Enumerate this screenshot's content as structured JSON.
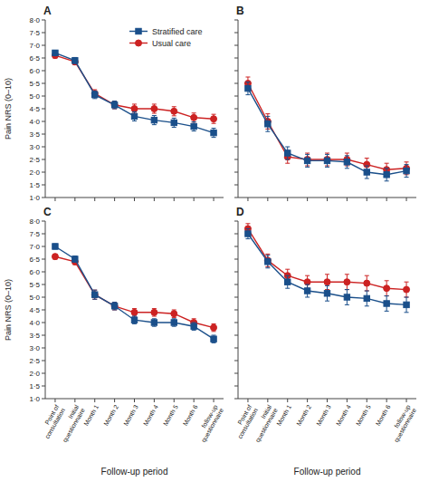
{
  "chart_data": [
    {
      "type": "line",
      "title": "A",
      "ylabel": "Pain NRS (0–10)",
      "categories": [
        null,
        null,
        null,
        null,
        null,
        null,
        null,
        null,
        null
      ],
      "series": [
        {
          "name": "Stratified care",
          "color": "#1a4f8a",
          "marker": "square",
          "values": [
            6.7,
            6.4,
            5.05,
            4.65,
            4.2,
            4.05,
            3.95,
            3.8,
            3.55
          ],
          "errors": [
            0.1,
            0.12,
            0.15,
            0.15,
            0.18,
            0.18,
            0.18,
            0.18,
            0.18
          ]
        },
        {
          "name": "Usual care",
          "color": "#cc2222",
          "marker": "circle",
          "values": [
            6.6,
            6.35,
            5.1,
            4.65,
            4.5,
            4.5,
            4.4,
            4.15,
            4.1
          ],
          "errors": [
            0.1,
            0.12,
            0.15,
            0.15,
            0.18,
            0.18,
            0.18,
            0.18,
            0.18
          ]
        }
      ],
      "ylim": [
        1.0,
        8.0
      ],
      "yticks": [
        {
          "value": 1.0,
          "label": "1·0"
        },
        {
          "value": 1.5,
          "label": "1·5"
        },
        {
          "value": 2.0,
          "label": "2·0"
        },
        {
          "value": 2.5,
          "label": "2·5"
        },
        {
          "value": 3.0,
          "label": "3·0"
        },
        {
          "value": 3.5,
          "label": "3·5"
        },
        {
          "value": 4.0,
          "label": "4·0"
        },
        {
          "value": 4.5,
          "label": "4·5"
        },
        {
          "value": 5.0,
          "label": "5·0"
        },
        {
          "value": 5.5,
          "label": "5·5"
        },
        {
          "value": 6.0,
          "label": "6·0"
        },
        {
          "value": 6.5,
          "label": "6·5"
        },
        {
          "value": 7.0,
          "label": "7·0"
        },
        {
          "value": 7.5,
          "label": "7·5"
        },
        {
          "value": 8.0,
          "label": "8·0"
        }
      ],
      "tick_labels": "y",
      "legend": "upper-right"
    },
    {
      "type": "line",
      "title": "B",
      "categories": [
        null,
        null,
        null,
        null,
        null,
        null,
        null,
        null,
        null
      ],
      "series": [
        {
          "color": "#1a4f8a",
          "marker": "square",
          "values": [
            5.3,
            3.9,
            2.75,
            2.45,
            2.45,
            2.4,
            2.0,
            1.9,
            2.05
          ],
          "errors": [
            0.25,
            0.3,
            0.25,
            0.25,
            0.25,
            0.25,
            0.25,
            0.25,
            0.25
          ]
        },
        {
          "color": "#cc2222",
          "marker": "circle",
          "values": [
            5.5,
            4.0,
            2.6,
            2.5,
            2.5,
            2.5,
            2.3,
            2.1,
            2.15
          ],
          "errors": [
            0.25,
            0.3,
            0.25,
            0.25,
            0.25,
            0.25,
            0.25,
            0.25,
            0.25
          ]
        }
      ],
      "ylim": [
        1.0,
        8.0
      ],
      "yticks": [
        1.0,
        1.5,
        2.0,
        2.5,
        3.0,
        3.5,
        4.0,
        4.5,
        5.0,
        5.5,
        6.0,
        6.5,
        7.0,
        7.5,
        8.0
      ],
      "tick_labels": false
    },
    {
      "type": "line",
      "title": "C",
      "ylabel": "Pain NRS (0–10)",
      "xlabel": "Follow-up period",
      "categories": [
        "Point of\nconsultation",
        "Initial\nquestionnaire",
        "Month 1",
        "Month 2",
        "Month 3",
        "Month 4",
        "Month 5",
        "Month 6",
        "follow-up\nquestionnaire"
      ],
      "series": [
        {
          "color": "#1a4f8a",
          "marker": "square",
          "values": [
            7.0,
            6.5,
            5.1,
            4.65,
            4.1,
            4.0,
            4.0,
            3.85,
            3.35
          ],
          "errors": [
            0.1,
            0.12,
            0.18,
            0.15,
            0.15,
            0.15,
            0.15,
            0.15,
            0.15
          ]
        },
        {
          "color": "#cc2222",
          "marker": "circle",
          "values": [
            6.6,
            6.4,
            5.1,
            4.65,
            4.4,
            4.4,
            4.35,
            4.0,
            3.8
          ],
          "errors": [
            0.1,
            0.12,
            0.18,
            0.15,
            0.15,
            0.15,
            0.15,
            0.15,
            0.15
          ]
        }
      ],
      "ylim": [
        1.0,
        8.0
      ],
      "yticks": [
        {
          "value": 1.0,
          "label": "1·0"
        },
        {
          "value": 1.5,
          "label": "1·5"
        },
        {
          "value": 2.0,
          "label": "2·0"
        },
        {
          "value": 2.5,
          "label": "2·5"
        },
        {
          "value": 3.0,
          "label": "3·0"
        },
        {
          "value": 3.5,
          "label": "3·5"
        },
        {
          "value": 4.0,
          "label": "4·0"
        },
        {
          "value": 4.5,
          "label": "4·5"
        },
        {
          "value": 5.0,
          "label": "5·0"
        },
        {
          "value": 5.5,
          "label": "5·5"
        },
        {
          "value": 6.0,
          "label": "6·0"
        },
        {
          "value": 6.5,
          "label": "6·5"
        },
        {
          "value": 7.0,
          "label": "7·0"
        },
        {
          "value": 7.5,
          "label": "7·5"
        },
        {
          "value": 8.0,
          "label": "8·0"
        }
      ]
    },
    {
      "type": "line",
      "title": "D",
      "xlabel": "Follow-up period",
      "categories": [
        "Point of\nconsultation",
        "Initial\nquestionnaire",
        "Month 1",
        "Month 2",
        "Month 3",
        "Month 4",
        "Month 5",
        "Month 6",
        "follow-up\nquestionnaire"
      ],
      "series": [
        {
          "color": "#1a4f8a",
          "marker": "square",
          "values": [
            7.5,
            6.4,
            5.6,
            5.25,
            5.15,
            5.0,
            4.95,
            4.75,
            4.7
          ],
          "errors": [
            0.2,
            0.25,
            0.25,
            0.25,
            0.3,
            0.3,
            0.3,
            0.3,
            0.3
          ]
        },
        {
          "color": "#cc2222",
          "marker": "circle",
          "values": [
            7.7,
            6.45,
            5.85,
            5.6,
            5.6,
            5.6,
            5.55,
            5.35,
            5.3
          ],
          "errors": [
            0.2,
            0.25,
            0.25,
            0.25,
            0.3,
            0.3,
            0.3,
            0.3,
            0.3
          ]
        }
      ],
      "ylim": [
        1.0,
        8.0
      ],
      "yticks": [
        1.0,
        1.5,
        2.0,
        2.5,
        3.0,
        3.5,
        4.0,
        4.5,
        5.0,
        5.5,
        6.0,
        6.5,
        7.0,
        7.5,
        8.0
      ],
      "tick_labels": "x"
    }
  ]
}
